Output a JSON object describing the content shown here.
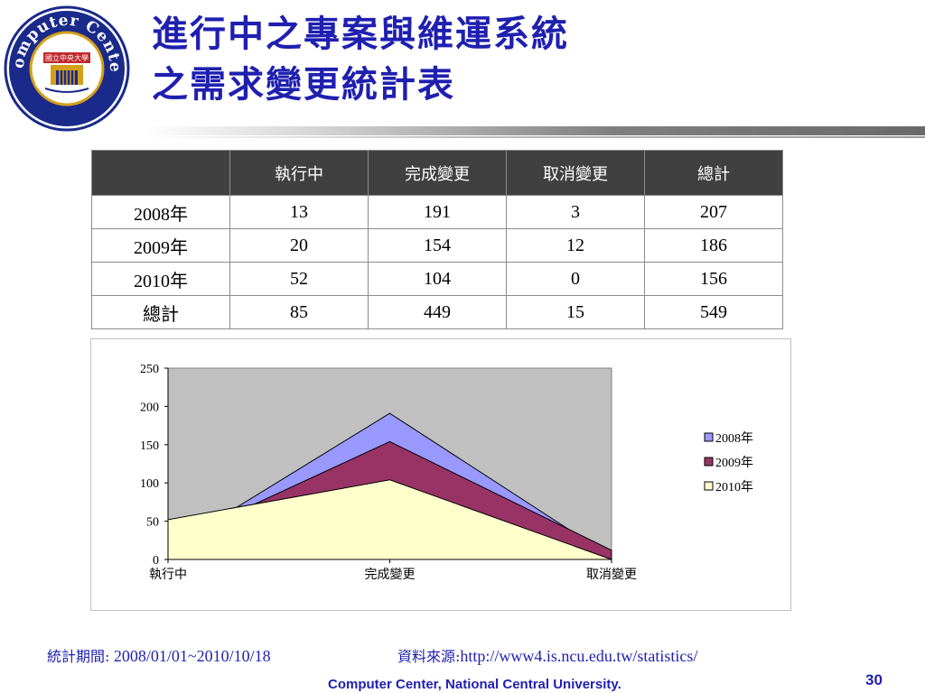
{
  "logo": {
    "ring_top_text": "Computer Center",
    "ring_bottom_text": "www.cc.ncu.edu.tw",
    "banner_text": "國立中央大學"
  },
  "slide": {
    "title_line1": "進行中之專案與維運系統",
    "title_line2": "之需求變更統計表"
  },
  "table": {
    "headers": [
      "",
      "執行中",
      "完成變更",
      "取消變更",
      "總計"
    ],
    "rows": [
      [
        "2008年",
        "13",
        "191",
        "3",
        "207"
      ],
      [
        "2009年",
        "20",
        "154",
        "12",
        "186"
      ],
      [
        "2010年",
        "52",
        "104",
        "0",
        "156"
      ],
      [
        "總計",
        "85",
        "449",
        "15",
        "549"
      ]
    ]
  },
  "chart_data": {
    "type": "area",
    "categories": [
      "執行中",
      "完成變更",
      "取消變更"
    ],
    "series": [
      {
        "name": "2008年",
        "values": [
          13,
          191,
          3
        ],
        "color": "#9999ff"
      },
      {
        "name": "2009年",
        "values": [
          20,
          154,
          12
        ],
        "color": "#993366"
      },
      {
        "name": "2010年",
        "values": [
          52,
          104,
          0
        ],
        "color": "#ffffcc"
      }
    ],
    "ylim": [
      0,
      250
    ],
    "yticks": [
      0,
      50,
      100,
      150,
      200,
      250
    ],
    "plot_background": "#c0c0c0",
    "grid": false,
    "legend_position": "right"
  },
  "footer": {
    "period_label": "統計期間:",
    "period_value": "2008/01/01~2010/10/18",
    "source_label": "資料來源:",
    "source_value": "http://www4.is.ncu.edu.tw/statistics/",
    "credit": "Computer Center, National Central University.",
    "page_number": "30"
  }
}
